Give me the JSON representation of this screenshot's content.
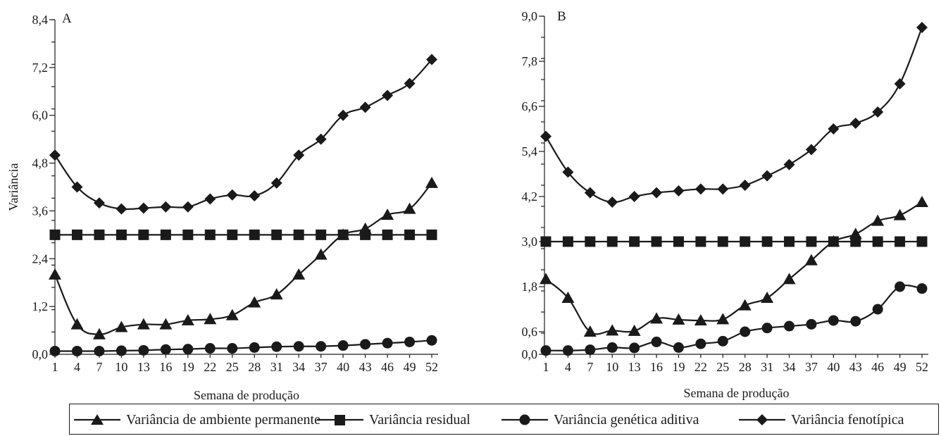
{
  "chart_data": [
    {
      "type": "line",
      "panel_label": "A",
      "ylabel": "Variância",
      "xlabel": "Semana de produção",
      "x": [
        1,
        4,
        7,
        10,
        13,
        16,
        19,
        22,
        25,
        28,
        31,
        34,
        37,
        40,
        43,
        46,
        49,
        52
      ],
      "yticks": [
        "0,0",
        "1,2",
        "2,4",
        "3,6",
        "4,8",
        "6,0",
        "7,2",
        "8,4"
      ],
      "ylim": [
        0,
        8.4
      ],
      "series": [
        {
          "key": "ambiente",
          "marker": "triangle",
          "values": [
            2.0,
            0.75,
            0.5,
            0.68,
            0.75,
            0.75,
            0.85,
            0.88,
            0.98,
            1.3,
            1.5,
            2.0,
            2.5,
            3.0,
            3.15,
            3.5,
            3.65,
            4.3
          ]
        },
        {
          "key": "residual",
          "marker": "square",
          "values": [
            3.0,
            3.0,
            3.0,
            3.0,
            3.0,
            3.0,
            3.0,
            3.0,
            3.0,
            3.0,
            3.0,
            3.0,
            3.0,
            3.0,
            3.0,
            3.0,
            3.0,
            3.0
          ]
        },
        {
          "key": "genetica",
          "marker": "circle",
          "values": [
            0.08,
            0.08,
            0.08,
            0.09,
            0.1,
            0.12,
            0.13,
            0.15,
            0.15,
            0.17,
            0.19,
            0.2,
            0.2,
            0.22,
            0.25,
            0.28,
            0.31,
            0.35
          ]
        },
        {
          "key": "fenotipica",
          "marker": "diamond",
          "values": [
            5.0,
            4.2,
            3.8,
            3.65,
            3.67,
            3.7,
            3.7,
            3.9,
            4.0,
            3.98,
            4.3,
            5.0,
            5.4,
            6.0,
            6.2,
            6.5,
            6.8,
            7.4
          ]
        }
      ]
    },
    {
      "type": "line",
      "panel_label": "B",
      "ylabel": "",
      "xlabel": "Semana de produção",
      "x": [
        1,
        4,
        7,
        10,
        13,
        16,
        19,
        22,
        25,
        28,
        31,
        34,
        37,
        40,
        43,
        46,
        49,
        52
      ],
      "yticks": [
        "0,0",
        "0,6",
        "1,8",
        "3,0",
        "4,2",
        "5,4",
        "6,6",
        "7,8",
        "9,0"
      ],
      "ytick_values": [
        0,
        0.6,
        1.8,
        3.0,
        4.2,
        5.4,
        6.6,
        7.8,
        9.0
      ],
      "ylim": [
        0,
        9.0
      ],
      "series": [
        {
          "key": "ambiente",
          "marker": "triangle",
          "values": [
            2.0,
            1.5,
            0.6,
            0.63,
            0.62,
            0.95,
            0.92,
            0.9,
            0.93,
            1.3,
            1.5,
            2.0,
            2.5,
            3.0,
            3.2,
            3.55,
            3.7,
            4.05
          ]
        },
        {
          "key": "residual",
          "marker": "square",
          "values": [
            3.0,
            3.0,
            3.0,
            3.0,
            3.0,
            3.0,
            3.0,
            3.0,
            3.0,
            3.0,
            3.0,
            3.0,
            3.0,
            3.0,
            3.0,
            3.0,
            3.0,
            3.0
          ]
        },
        {
          "key": "genetica",
          "marker": "circle",
          "values": [
            0.1,
            0.1,
            0.12,
            0.18,
            0.17,
            0.33,
            0.18,
            0.28,
            0.35,
            0.6,
            0.7,
            0.75,
            0.8,
            0.9,
            0.88,
            1.2,
            1.8,
            1.75
          ]
        },
        {
          "key": "fenotipica",
          "marker": "diamond",
          "values": [
            5.8,
            4.85,
            4.3,
            4.05,
            4.2,
            4.3,
            4.35,
            4.4,
            4.4,
            4.5,
            4.75,
            5.05,
            5.45,
            6.0,
            6.15,
            6.45,
            7.2,
            8.7
          ]
        }
      ]
    }
  ],
  "legend": [
    {
      "key": "ambiente",
      "marker": "triangle",
      "label": "Variância de ambiente permanente"
    },
    {
      "key": "residual",
      "marker": "square",
      "label": "Variância residual"
    },
    {
      "key": "genetica",
      "marker": "circle",
      "label": "Variância genética aditiva"
    },
    {
      "key": "fenotipica",
      "marker": "diamond",
      "label": "Variância fenotípica"
    }
  ]
}
